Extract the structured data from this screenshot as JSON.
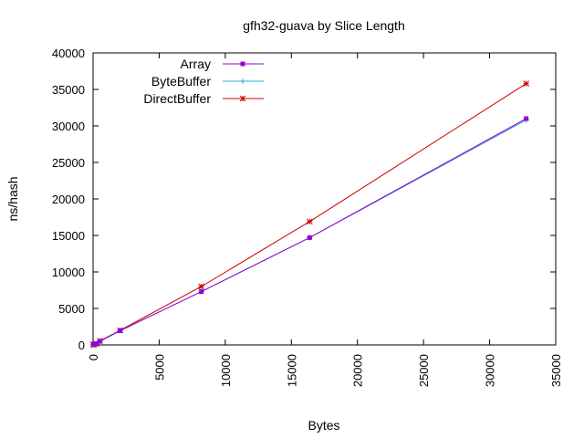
{
  "chart_data": {
    "type": "line",
    "title": "gfh32-guava by Slice Length",
    "xlabel": "Bytes",
    "ylabel": "ns/hash",
    "xlim": [
      0,
      35000
    ],
    "ylim": [
      0,
      40000
    ],
    "xticks": [
      0,
      5000,
      10000,
      15000,
      20000,
      25000,
      30000,
      35000
    ],
    "yticks": [
      0,
      5000,
      10000,
      15000,
      20000,
      25000,
      30000,
      35000,
      40000
    ],
    "grid": false,
    "legend": "top-left",
    "series": [
      {
        "name": "Array",
        "color": "#9400d3",
        "marker": "square",
        "x": [
          16,
          64,
          256,
          512,
          2048,
          8192,
          16384,
          32768
        ],
        "y": [
          30,
          60,
          150,
          500,
          1950,
          7300,
          14700,
          31000
        ]
      },
      {
        "name": "ByteBuffer",
        "color": "#2aa6d6",
        "marker": "plus",
        "x": [
          16,
          64,
          256,
          512,
          2048,
          8192,
          16384,
          32768
        ],
        "y": [
          30,
          60,
          150,
          500,
          1950,
          7300,
          14700,
          30800
        ]
      },
      {
        "name": "DirectBuffer",
        "color": "#cc0000",
        "marker": "star",
        "x": [
          16,
          64,
          256,
          512,
          2048,
          8192,
          16384,
          32768
        ],
        "y": [
          30,
          60,
          160,
          550,
          2000,
          8000,
          16900,
          35800
        ]
      }
    ]
  }
}
